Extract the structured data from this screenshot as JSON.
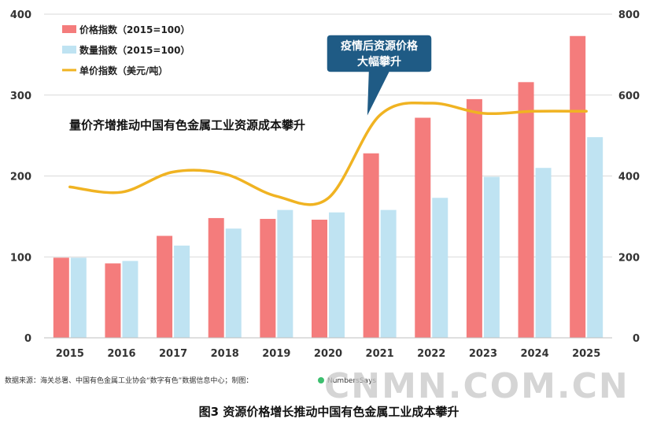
{
  "chart_data": {
    "type": "bar",
    "title": "量价齐增推动中国有色金属工业资源成本攀升",
    "categories": [
      "2015",
      "2016",
      "2017",
      "2018",
      "2019",
      "2020",
      "2021",
      "2022",
      "2023",
      "2024",
      "2025"
    ],
    "series": [
      {
        "name": "价格指数（2015=100）",
        "type": "bar",
        "axis": "left",
        "color": "#f47c7c",
        "values": [
          99,
          92,
          126,
          148,
          147,
          146,
          228,
          272,
          295,
          316,
          373
        ]
      },
      {
        "name": "数量指数（2015=100）",
        "type": "bar",
        "axis": "left",
        "color": "#bfe3f2",
        "values": [
          99,
          95,
          114,
          135,
          158,
          155,
          158,
          173,
          199,
          210,
          248
        ]
      },
      {
        "name": "单价指数（美元/吨）",
        "type": "line",
        "axis": "right",
        "color": "#f0b322",
        "values": [
          373,
          360,
          410,
          405,
          350,
          345,
          550,
          580,
          555,
          560,
          560
        ]
      }
    ],
    "left_axis": {
      "ylim": [
        0,
        400
      ],
      "ticks": [
        "0",
        "100",
        "200",
        "300",
        "400"
      ]
    },
    "right_axis": {
      "ylim": [
        0,
        800
      ],
      "ticks": [
        "0",
        "200",
        "400",
        "600",
        "800"
      ]
    },
    "legend_position": "top-left",
    "grid": true,
    "annotation": {
      "line1": "疫情后资源价格",
      "line2": "大幅攀升"
    }
  },
  "source": "数据来源：海关总署、中国有色金属工业协会“数字有色”数据信息中心；制图：",
  "source_brand": "NumbersSays",
  "watermark": "CNMN.COM.CN",
  "caption": "图3  资源价格增长推动中国有色金属工业成本攀升",
  "colors": {
    "price": "#f47c7c",
    "quantity": "#bfe3f2",
    "unit": "#f0b322",
    "callout": "#1f5b85"
  }
}
